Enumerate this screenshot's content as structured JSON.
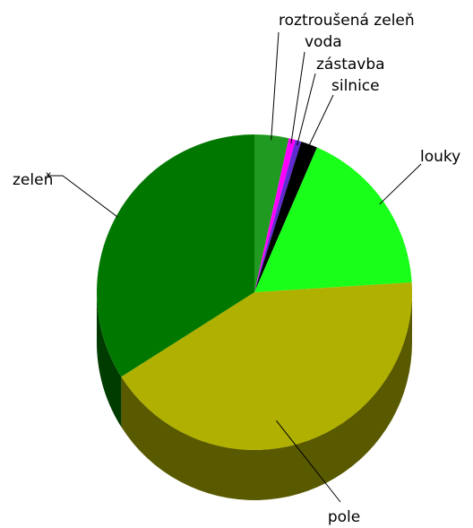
{
  "chart_data": {
    "type": "pie",
    "style": "3d",
    "title": "",
    "slices": [
      {
        "label": "roztroušená zeleň",
        "value": 3.5,
        "color": "#209a20",
        "side_color": "#0f5a0f"
      },
      {
        "label": "voda",
        "value": 0.7,
        "color": "#ff00ff",
        "side_color": "#7f007f"
      },
      {
        "label": "zástavba",
        "value": 0.6,
        "color": "#5d2bd0",
        "side_color": "#2e1568"
      },
      {
        "label": "silnice",
        "value": 1.7,
        "color": "#000000",
        "side_color": "#000000"
      },
      {
        "label": "louky",
        "value": 17.5,
        "color": "#19ff19",
        "side_color": "#0c800c"
      },
      {
        "label": "pole",
        "value": 42.0,
        "color": "#b0b000",
        "side_color": "#595900"
      },
      {
        "label": "zeleň",
        "value": 34.0,
        "color": "#007800",
        "side_color": "#003c00"
      }
    ],
    "legend": "none"
  }
}
